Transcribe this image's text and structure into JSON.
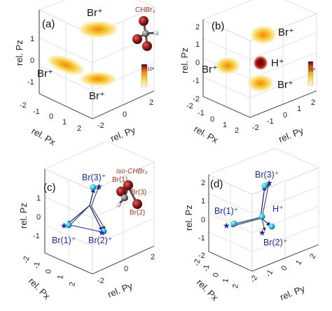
{
  "panels": {
    "a": {
      "label": "(a)",
      "ions": [
        "Br⁺",
        "Br⁺",
        "Br⁺"
      ],
      "molecule_label": "CHBr₃",
      "colorbar_label": "10²",
      "axes": {
        "z_label": "rel. Pz",
        "x_label": "rel. Px",
        "y_label": "rel. Py",
        "z_ticks": [
          "1",
          "0",
          "-1"
        ],
        "x_ticks": [
          "-2",
          "-1",
          "0",
          "1",
          "2"
        ],
        "y_ticks": [
          "-2",
          "0",
          "2"
        ]
      }
    },
    "b": {
      "label": "(b)",
      "ions": [
        "Br⁺",
        "Br⁺",
        "H⁺",
        "Br⁺"
      ],
      "colorbar_label": "10²",
      "axes": {
        "z_label": "rel. Pz",
        "x_label": "rel. Px",
        "y_label": "rel. Py",
        "z_ticks": [
          "2",
          "1",
          "0",
          "-1",
          "-2"
        ],
        "x_ticks": [
          "-2",
          "-1",
          "0",
          "1",
          "2"
        ],
        "y_ticks": [
          "-2",
          "-1",
          "0",
          "1",
          "2"
        ]
      }
    },
    "c": {
      "label": "(c)",
      "ions": [
        "Br(3)⁺",
        "Br(1)⁺",
        "Br(2)⁺"
      ],
      "molecule_label": "iso-CHBr₃",
      "atom_labels": [
        "Br(1)",
        "Br(3)",
        "Br(2)"
      ],
      "axes": {
        "z_label": "rel. Pz",
        "x_label": "rel. Px",
        "y_label": "rel. Py",
        "z_ticks": [
          "1",
          "0",
          "-1"
        ],
        "x_ticks": [
          "-2",
          "-1",
          "0",
          "1",
          "2"
        ],
        "y_ticks": [
          "-2",
          "0",
          "2"
        ]
      }
    },
    "d": {
      "label": "(d)",
      "ions": [
        "Br(3)⁺",
        "Br(1)⁺",
        "H⁺",
        "Br(2)⁺"
      ],
      "axes": {
        "z_label": "rel. Pz",
        "x_label": "rel. Px",
        "y_label": "rel. Py",
        "z_ticks": [
          "2",
          "1",
          "0",
          "-1",
          "-2"
        ],
        "x_ticks": [
          "-2",
          "-1",
          "0",
          "1",
          "2"
        ],
        "y_ticks": [
          "-2",
          "-1",
          "0",
          "1",
          "2"
        ]
      }
    }
  },
  "colors": {
    "heat_hot": "#f5a21a",
    "heat_mid": "#f7d23a",
    "heat_dark": "#9a1010",
    "atom_br": "#9b1d1d",
    "atom_c": "#6e6e6e",
    "vector_blue": "#1a2aa8",
    "sphere_cyan": "#29c8f0"
  }
}
